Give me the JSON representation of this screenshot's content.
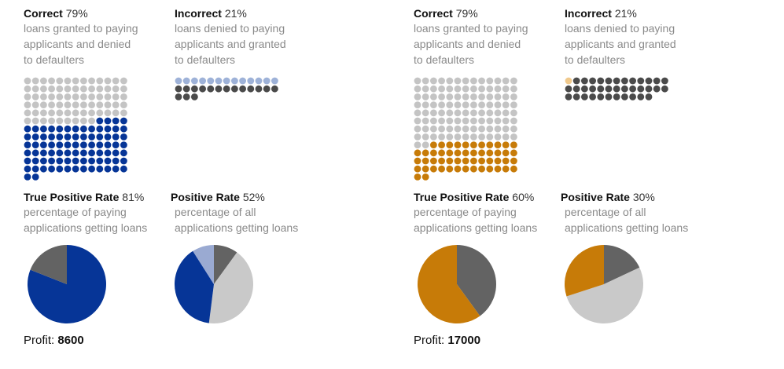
{
  "panels": [
    {
      "id": "left",
      "color": "#063597",
      "correct": {
        "title": "Correct",
        "pct": "79%",
        "desc": [
          "loans granted to paying",
          "applicants and denied",
          "to defaulters"
        ]
      },
      "incorrect": {
        "title": "Incorrect",
        "pct": "21%",
        "desc": [
          "loans denied to paying",
          "applicants and granted",
          "to defaulters"
        ]
      },
      "tpr": {
        "title": "True Positive Rate",
        "pct": "81%",
        "desc": [
          "percentage of paying",
          "applications getting loans"
        ]
      },
      "pr": {
        "title": "Positive Rate",
        "pct": "52%",
        "desc": [
          "percentage of all",
          "applications getting loans"
        ]
      },
      "profit_label": "Profit:",
      "profit_value": "8600"
    },
    {
      "id": "right",
      "color": "#c77b08",
      "correct": {
        "title": "Correct",
        "pct": "79%",
        "desc": [
          "loans granted to paying",
          "applicants and denied",
          "to defaulters"
        ]
      },
      "incorrect": {
        "title": "Incorrect",
        "pct": "21%",
        "desc": [
          "loans denied to paying",
          "applicants and granted",
          "to defaulters"
        ]
      },
      "tpr": {
        "title": "True Positive Rate",
        "pct": "60%",
        "desc": [
          "percentage of paying",
          "applications getting loans"
        ]
      },
      "pr": {
        "title": "Positive Rate",
        "pct": "30%",
        "desc": [
          "percentage of all",
          "applications getting loans"
        ]
      },
      "profit_label": "Profit:",
      "profit_value": "17000"
    }
  ],
  "chart_data": [
    {
      "type": "waffle",
      "panel": "left",
      "correct_grid": {
        "columns": 13,
        "gray": 74,
        "colored": 84,
        "gray_first": true
      },
      "incorrect_grid": {
        "columns": 13,
        "light": 13,
        "dark": 16,
        "light_first": true
      },
      "colors": {
        "gray": "#c4c4c4",
        "colored": "#063597",
        "light": "#9eb2d8",
        "dark": "#4a4a4a"
      }
    },
    {
      "type": "waffle",
      "panel": "right",
      "correct_grid": {
        "columns": 13,
        "gray": 106,
        "colored": 52,
        "gray_first": true
      },
      "incorrect_grid": {
        "columns": 13,
        "light": 1,
        "dark": 36,
        "light_first": true
      },
      "colors": {
        "gray": "#c4c4c4",
        "colored": "#c77b08",
        "light": "#f0c98c",
        "dark": "#4a4a4a"
      }
    },
    {
      "type": "pie",
      "panel": "left",
      "name": "tpr",
      "slices": [
        {
          "value": 81,
          "color": "#063597"
        },
        {
          "value": 19,
          "color": "#636363"
        }
      ]
    },
    {
      "type": "pie",
      "panel": "left",
      "name": "pr",
      "slices": [
        {
          "value": 10,
          "color": "#636363"
        },
        {
          "value": 42,
          "color": "#c9c9c9"
        },
        {
          "value": 39,
          "color": "#063597"
        },
        {
          "value": 9,
          "color": "#9aaad2"
        }
      ]
    },
    {
      "type": "pie",
      "panel": "right",
      "name": "tpr",
      "slices": [
        {
          "value": 40,
          "color": "#636363"
        },
        {
          "value": 60,
          "color": "#c77b08"
        }
      ]
    },
    {
      "type": "pie",
      "panel": "right",
      "name": "pr",
      "slices": [
        {
          "value": 18,
          "color": "#636363"
        },
        {
          "value": 52,
          "color": "#c9c9c9"
        },
        {
          "value": 30,
          "color": "#c77b08"
        }
      ]
    }
  ]
}
